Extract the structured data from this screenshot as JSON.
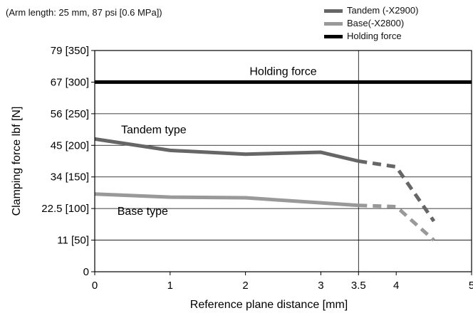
{
  "subtitle": "(Arm length: 25 mm, 87 psi [0.6 MPa])",
  "colors": {
    "tandem": "#666666",
    "base": "#999999",
    "holding": "#000000"
  },
  "legend": [
    {
      "label": "Tandem (-X2900)",
      "color": "#666666"
    },
    {
      "label": "Base(-X2800)",
      "color": "#999999"
    },
    {
      "label": "Holding force",
      "color": "#000000"
    }
  ],
  "chart_data": {
    "type": "line",
    "xlabel": "Reference plane distance [mm]",
    "ylabel": "Clamping force  lbf [N]",
    "xlim": [
      0,
      5
    ],
    "ylim": [
      0,
      350
    ],
    "xticks": [
      {
        "value": 0,
        "label": "0"
      },
      {
        "value": 1,
        "label": "1"
      },
      {
        "value": 2,
        "label": "2"
      },
      {
        "value": 3,
        "label": "3"
      },
      {
        "value": 3.5,
        "label": "3.5"
      },
      {
        "value": 4,
        "label": "4"
      },
      {
        "value": 5,
        "label": "5"
      }
    ],
    "yticks": [
      {
        "value": 0,
        "label": "0"
      },
      {
        "value": 50,
        "label": "11 [50]"
      },
      {
        "value": 100,
        "label": "22.5 [100]"
      },
      {
        "value": 150,
        "label": "34 [150]"
      },
      {
        "value": 200,
        "label": "45 [200]"
      },
      {
        "value": 250,
        "label": "56 [250]"
      },
      {
        "value": 300,
        "label": "67 [300]"
      },
      {
        "value": 350,
        "label": "79 [350]"
      }
    ],
    "grid": "horizontal",
    "reference_vline": 3.5,
    "series": [
      {
        "name": "Tandem (-X2900)",
        "label": "Tandem type",
        "color": "#666666",
        "solid": {
          "x": [
            0,
            1,
            2,
            3,
            3.5
          ],
          "y": [
            210,
            192,
            186,
            189,
            175
          ]
        },
        "dashed": {
          "x": [
            3.5,
            4,
            4.5
          ],
          "y": [
            175,
            166,
            80
          ]
        }
      },
      {
        "name": "Base(-X2800)",
        "label": "Base type",
        "color": "#999999",
        "solid": {
          "x": [
            0,
            1,
            2,
            3,
            3.5
          ],
          "y": [
            123,
            118,
            117,
            109,
            105
          ]
        },
        "dashed": {
          "x": [
            3.5,
            4,
            4.5
          ],
          "y": [
            105,
            103,
            50
          ]
        }
      }
    ],
    "holding_force": {
      "name": "Holding force",
      "label": "Holding force",
      "value": 300,
      "color": "#000000"
    }
  }
}
